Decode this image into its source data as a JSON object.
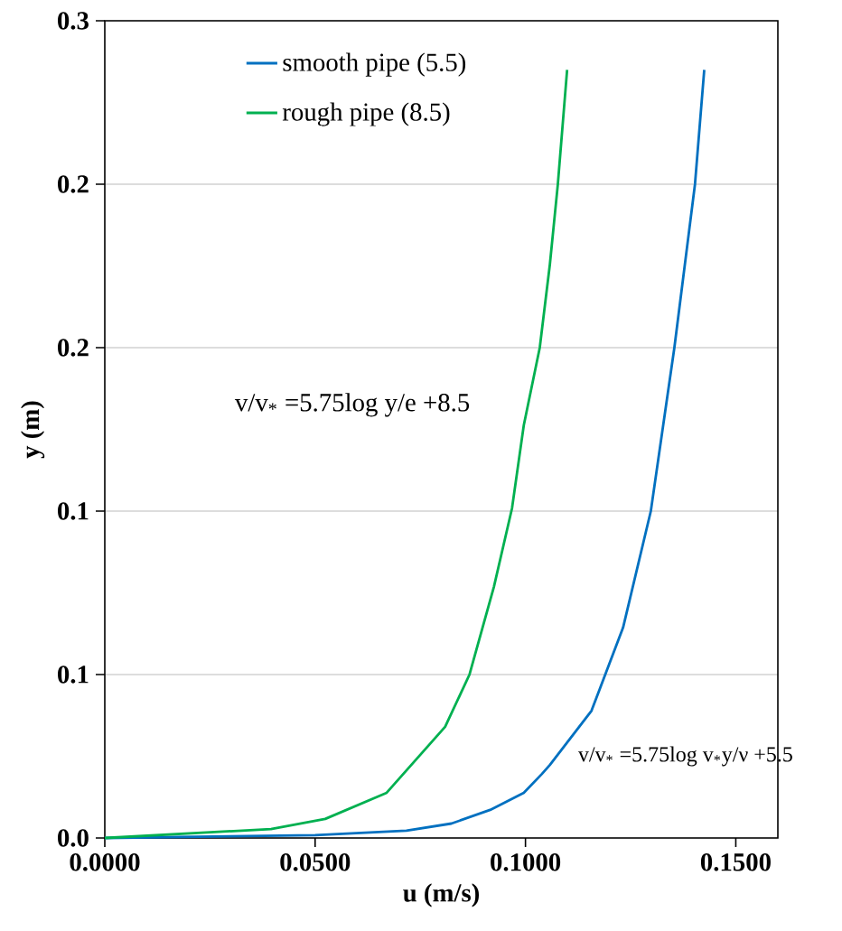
{
  "chart_data": {
    "type": "line",
    "xlabel": "u (m/s)",
    "ylabel": "y (m)",
    "xlim": [
      0,
      0.16
    ],
    "ylim": [
      0,
      0.3
    ],
    "xticks": [
      {
        "value": 0,
        "label": "0.0000"
      },
      {
        "value": 0.05,
        "label": "0.0500"
      },
      {
        "value": 0.1,
        "label": "0.1000"
      },
      {
        "value": 0.15,
        "label": "0.1500"
      }
    ],
    "yticks": [
      {
        "value": 0,
        "label": "0.0"
      },
      {
        "value": 0.06,
        "label": "0.1"
      },
      {
        "value": 0.12,
        "label": "0.1"
      },
      {
        "value": 0.18,
        "label": "0.2"
      },
      {
        "value": 0.24,
        "label": "0.2"
      },
      {
        "value": 0.3,
        "label": "0.3"
      }
    ],
    "grid": "y",
    "legend": "top left",
    "marker": "none",
    "line_style": "solid",
    "series": [
      {
        "name": "smooth pipe (5.5)",
        "color": "#0070c0",
        "x": [
          0,
          0.05,
          0.0717,
          0.0824,
          0.0916,
          0.0996,
          0.1039,
          0.1058,
          0.1157,
          0.1232,
          0.1298,
          0.1354,
          0.1403,
          0.1425
        ],
        "values": [
          0,
          0.001,
          0.0027,
          0.0053,
          0.0103,
          0.0166,
          0.0235,
          0.0268,
          0.0467,
          0.0772,
          0.12,
          0.18,
          0.24,
          0.282
        ]
      },
      {
        "name": "rough pipe (8.5)",
        "color": "#00b050",
        "x": [
          0,
          0.0395,
          0.0524,
          0.067,
          0.0809,
          0.0867,
          0.0925,
          0.0968,
          0.0996,
          0.1034,
          0.1058,
          0.1077,
          0.1099
        ],
        "values": [
          0,
          0.0033,
          0.007,
          0.0166,
          0.0408,
          0.06,
          0.0922,
          0.121,
          0.1515,
          0.18,
          0.2105,
          0.24,
          0.282
        ]
      }
    ],
    "annotations": [
      "v/v$_{*}$ =5.75log y/e +8.5",
      "v/v$_{*}$ =5.75log v$_{*}$y/ν +5.5"
    ]
  }
}
